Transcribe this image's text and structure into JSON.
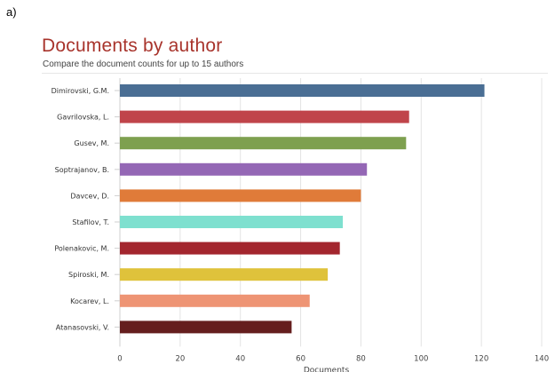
{
  "panel_label": "a)",
  "chart_data": {
    "type": "bar",
    "orientation": "horizontal",
    "title": "Documents by author",
    "subtitle": "Compare the document counts for up to 15 authors",
    "xlabel": "Documents",
    "ylabel": "",
    "xlim": [
      0,
      140
    ],
    "xticks": [
      0,
      20,
      40,
      60,
      80,
      100,
      120,
      140
    ],
    "grid": "vertical",
    "categories": [
      "Dimirovski, G.M.",
      "Gavrilovska, L.",
      "Gusev, M.",
      "Soptrajanov, B.",
      "Davcev, D.",
      "Stafilov, T.",
      "Polenakovic, M.",
      "Spiroski, M.",
      "Kocarev, L.",
      "Atanasovski, V."
    ],
    "values": [
      121,
      96,
      95,
      82,
      80,
      74,
      73,
      69,
      63,
      57
    ],
    "colors": [
      "#4a6e94",
      "#c0444a",
      "#7ea04f",
      "#9467b5",
      "#e07b39",
      "#7ee0cf",
      "#a3262e",
      "#dfc23b",
      "#ee9474",
      "#651e1e"
    ]
  }
}
